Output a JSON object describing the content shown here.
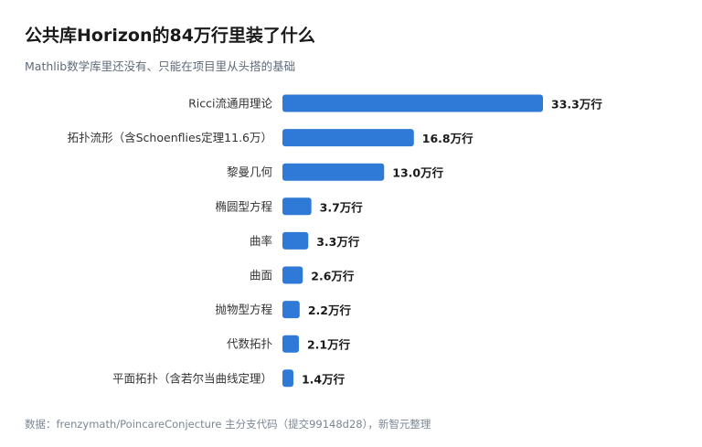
{
  "title": "公共库Horizon的84万行里装了什么",
  "subtitle": "Mathlib数学库里还没有、只能在项目里从头搭的基础",
  "source": "数据：frenzymath/PoincareConjecture 主分支代码（提交99148d28），新智元整理",
  "colors": {
    "bar": "#2f7ad6",
    "category_text": "#333333",
    "value_text": "#1a1a1a",
    "subtitle_text": "#5f6b7a",
    "source_text": "#7b8794"
  },
  "chart_data": {
    "type": "bar",
    "orientation": "horizontal",
    "categories": [
      "Ricci流通用理论",
      "拓扑流形（含Schoenflies定理11.6万）",
      "黎曼几何",
      "椭圆型方程",
      "曲率",
      "曲面",
      "抛物型方程",
      "代数拓扑",
      "平面拓扑（含若尔当曲线定理）"
    ],
    "values": [
      33.3,
      16.8,
      13.0,
      3.7,
      3.3,
      2.6,
      2.2,
      2.1,
      1.4
    ],
    "value_labels": [
      "33.3万行",
      "16.8万行",
      "13.0万行",
      "3.7万行",
      "3.3万行",
      "2.6万行",
      "2.2万行",
      "2.1万行",
      "1.4万行"
    ],
    "unit": "万行",
    "xlim": [
      0,
      33.3
    ],
    "grid": false,
    "legend": "none"
  }
}
